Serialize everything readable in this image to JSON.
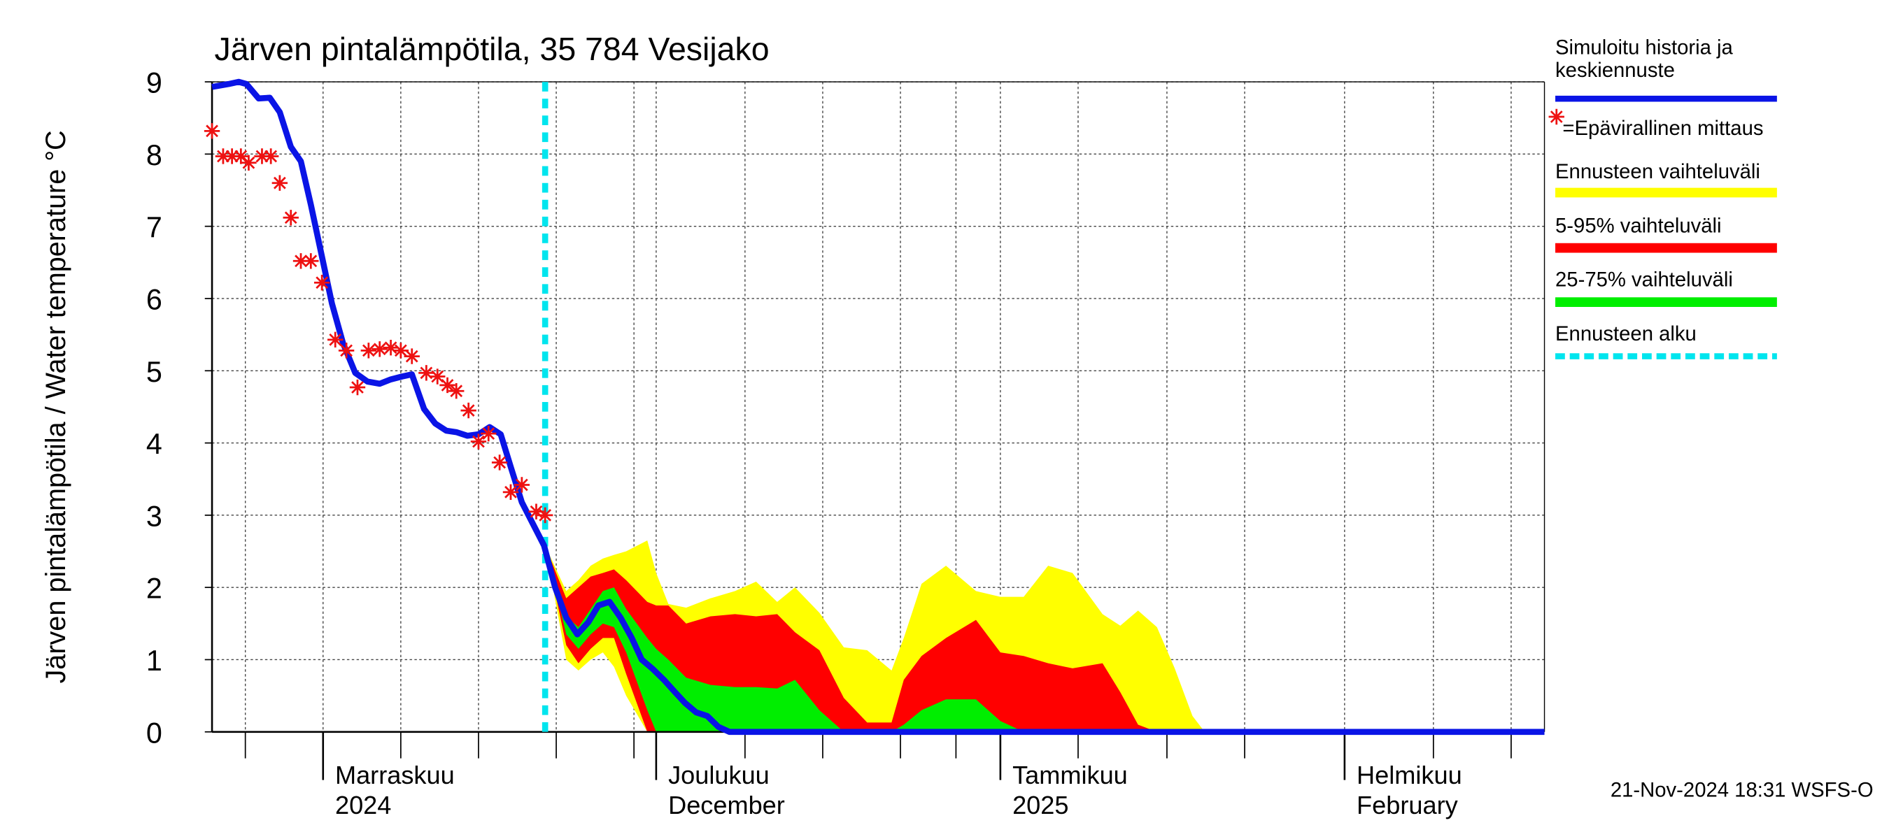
{
  "chart_data": {
    "type": "line",
    "title": "Järven pintalämpötila, 35 784 Vesijako",
    "ylabel": "Järven pintalämpötila / Water temperature °C",
    "footer": "21-Nov-2024 18:31 WSFS-O",
    "xlim": [
      0,
      120
    ],
    "ylim": [
      0,
      9
    ],
    "yticks": [
      0,
      1,
      2,
      3,
      4,
      5,
      6,
      7,
      8,
      9
    ],
    "xticks": [
      {
        "value": 10,
        "label": "Marraskuu",
        "sublabel": "2024"
      },
      {
        "value": 40,
        "label": "Joulukuu",
        "sublabel": "December"
      },
      {
        "value": 71,
        "label": "Tammikuu",
        "sublabel": "2025"
      },
      {
        "value": 102,
        "label": "Helmikuu",
        "sublabel": "February"
      }
    ],
    "xgrid": [
      3,
      17,
      24,
      31,
      38,
      48,
      55,
      62,
      67,
      78,
      86,
      93,
      110,
      117
    ],
    "grid": true,
    "forecast_start": {
      "value": 30,
      "name": "Ennusteen alku",
      "color": "#00e5ee"
    },
    "series": [
      {
        "name": "Simuloitu historia ja keskiennuste",
        "color": "#0a14e6",
        "x": [
          0,
          1.5,
          2.4,
          3.1,
          4.2,
          5.2,
          6.1,
          7.1,
          8.0,
          8.9,
          9.9,
          10.8,
          11.8,
          12.9,
          14.0,
          15.1,
          16.1,
          17.1,
          18.0,
          19.1,
          20.1,
          21.1,
          22.0,
          23.0,
          24.0,
          25.0,
          26.0,
          26.9,
          27.9,
          29.0,
          29.9,
          30.9,
          31.9,
          32.9,
          33.9,
          34.8,
          35.8,
          36.8,
          37.8,
          38.7,
          39.7,
          40.7,
          41.7,
          42.6,
          43.6,
          44.6,
          45.6,
          46.6,
          120
        ],
        "values": [
          8.93,
          8.97,
          9.0,
          8.97,
          8.77,
          8.78,
          8.58,
          8.1,
          7.9,
          7.3,
          6.58,
          5.93,
          5.38,
          4.97,
          4.85,
          4.82,
          4.88,
          4.92,
          4.95,
          4.47,
          4.27,
          4.17,
          4.15,
          4.1,
          4.12,
          4.22,
          4.12,
          3.67,
          3.18,
          2.85,
          2.58,
          2.0,
          1.58,
          1.35,
          1.52,
          1.75,
          1.8,
          1.58,
          1.3,
          1.0,
          0.87,
          0.72,
          0.55,
          0.4,
          0.27,
          0.22,
          0.07,
          0,
          0
        ]
      }
    ],
    "measurements": {
      "name": "=Epävirallinen mittaus",
      "color": "#ee1111",
      "x": [
        0,
        1,
        1.8,
        2.6,
        3.3,
        4.5,
        5.3,
        6.1,
        7.1,
        8.0,
        8.9,
        9.9,
        11.1,
        12.1,
        13.1,
        14.1,
        15.1,
        16.1,
        17.0,
        18.0,
        19.3,
        20.3,
        21.2,
        22.0,
        23.1,
        24.0,
        24.9,
        25.9,
        26.9,
        27.9,
        29.2,
        30.0
      ],
      "values": [
        8.32,
        7.97,
        7.97,
        7.97,
        7.88,
        7.97,
        7.97,
        7.6,
        7.12,
        6.52,
        6.52,
        6.22,
        5.43,
        5.28,
        4.77,
        5.28,
        5.3,
        5.32,
        5.28,
        5.2,
        4.97,
        4.92,
        4.8,
        4.72,
        4.45,
        4.02,
        4.13,
        3.73,
        3.32,
        3.42,
        3.05,
        3.0
      ]
    },
    "band_x": [
      30.0,
      31.9,
      33.0,
      34.1,
      35.2,
      36.2,
      37.3,
      39.2,
      40.0,
      41.1,
      42.7,
      44.9,
      47.1,
      49.0,
      50.9,
      52.5,
      54.7,
      56.9,
      59.0,
      61.2,
      62.3,
      63.9,
      66.1,
      68.8,
      71.0,
      73.1,
      75.3,
      77.5,
      80.2,
      81.8,
      83.4,
      85.1,
      86.7,
      88.3,
      89.4
    ],
    "bands": [
      {
        "name": "Ennusteen vaihteluväli",
        "color": "#ffff00",
        "upper": [
          2.58,
          1.95,
          2.1,
          2.3,
          2.4,
          2.45,
          2.5,
          2.65,
          2.2,
          1.77,
          1.72,
          1.85,
          1.95,
          2.08,
          1.8,
          2.0,
          1.65,
          1.17,
          1.13,
          0.85,
          1.3,
          2.05,
          2.3,
          1.95,
          1.87,
          1.87,
          2.3,
          2.2,
          1.63,
          1.47,
          1.68,
          1.45,
          0.88,
          0.22,
          0
        ],
        "lower": [
          2.58,
          1.0,
          0.85,
          1.0,
          1.1,
          0.9,
          0.5,
          0,
          0,
          0,
          0,
          0,
          0,
          0,
          0,
          0,
          0,
          0,
          0,
          0,
          0,
          0,
          0,
          0,
          0,
          0,
          0,
          0,
          0,
          0,
          0,
          0,
          0,
          0,
          0
        ]
      },
      {
        "name": "5-95% vaihteluväli",
        "color": "#ff0000",
        "upper": [
          2.58,
          1.85,
          2.0,
          2.15,
          2.2,
          2.25,
          2.1,
          1.8,
          1.75,
          1.75,
          1.5,
          1.6,
          1.63,
          1.6,
          1.63,
          1.38,
          1.13,
          0.47,
          0.13,
          0.13,
          0.72,
          1.05,
          1.3,
          1.55,
          1.1,
          1.05,
          0.95,
          0.88,
          0.95,
          0.55,
          0.1,
          0,
          0,
          0,
          0
        ],
        "lower": [
          2.58,
          1.2,
          0.95,
          1.15,
          1.3,
          1.3,
          0.8,
          0,
          0,
          0,
          0,
          0,
          0,
          0,
          0,
          0,
          0,
          0,
          0,
          0,
          0,
          0,
          0,
          0,
          0,
          0,
          0,
          0,
          0,
          0,
          0,
          0,
          0,
          0,
          0
        ]
      },
      {
        "name": "25-75% vaihteluväli",
        "color": "#00ee00",
        "upper": [
          2.58,
          1.6,
          1.45,
          1.7,
          1.95,
          2.0,
          1.7,
          1.3,
          1.15,
          1.0,
          0.75,
          0.65,
          0.62,
          0.62,
          0.6,
          0.72,
          0.3,
          0,
          0,
          0,
          0.1,
          0.3,
          0.45,
          0.45,
          0.15,
          0,
          0,
          0,
          0,
          0,
          0,
          0,
          0,
          0,
          0
        ],
        "lower": [
          2.58,
          1.35,
          1.15,
          1.35,
          1.5,
          1.45,
          1.1,
          0.3,
          0,
          0,
          0,
          0,
          0,
          0,
          0,
          0,
          0,
          0,
          0,
          0,
          0,
          0,
          0,
          0,
          0,
          0,
          0,
          0,
          0,
          0,
          0,
          0,
          0,
          0,
          0
        ]
      }
    ]
  }
}
